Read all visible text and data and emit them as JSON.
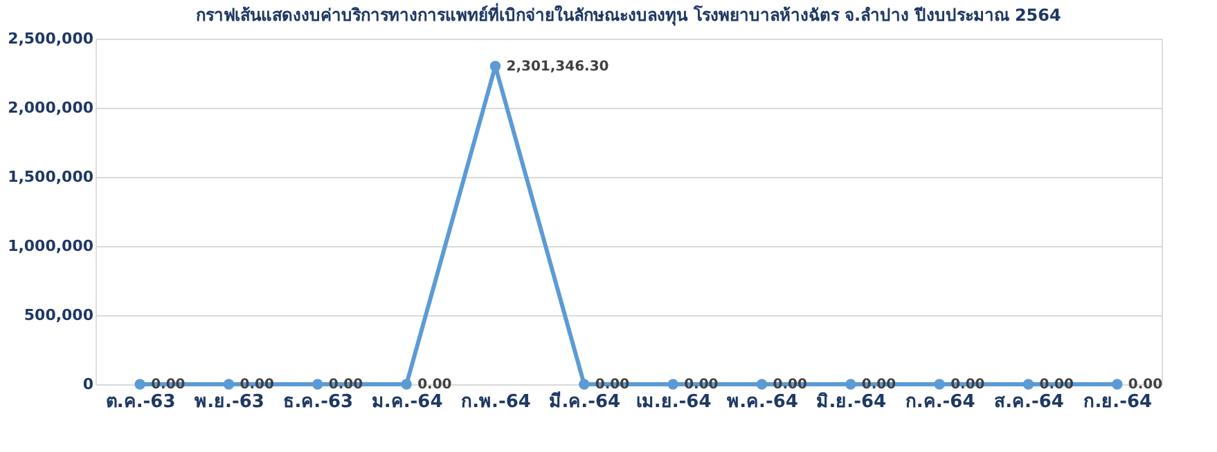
{
  "chart_data": {
    "type": "line",
    "title": "กราฟเส้นแสดงงบค่าบริการทางการแพทย์ที่เบิกจ่ายในลักษณะงบลงทุน โรงพยาบาลห้างฉัตร จ.ลำปาง ปีงบประมาณ 2564",
    "categories": [
      "ต.ค.-63",
      "พ.ย.-63",
      "ธ.ค.-63",
      "ม.ค.-64",
      "ก.พ.-64",
      "มี.ค.-64",
      "เม.ย.-64",
      "พ.ค.-64",
      "มิ.ย.-64",
      "ก.ค.-64",
      "ส.ค.-64",
      "ก.ย.-64"
    ],
    "series": [
      {
        "color": "#5b9bd5",
        "values": [
          0,
          0,
          0,
          0,
          2301346.3,
          0,
          0,
          0,
          0,
          0,
          0,
          0
        ],
        "value_labels": [
          "0.00",
          "0.00",
          "0.00",
          "0.00",
          "2,301,346.30",
          "0.00",
          "0.00",
          "0.00",
          "0.00",
          "0.00",
          "0.00",
          "0.00"
        ]
      }
    ],
    "ylim": [
      0,
      2500000
    ],
    "yticks": [
      {
        "value": 0,
        "label": "0"
      },
      {
        "value": 500000,
        "label": "500,000"
      },
      {
        "value": 1000000,
        "label": "1,000,000"
      },
      {
        "value": 1500000,
        "label": "1,500,000"
      },
      {
        "value": 2000000,
        "label": "2,000,000"
      },
      {
        "value": 2500000,
        "label": "2,500,000"
      }
    ],
    "grid": "y",
    "marker": "circle",
    "line_style": "solid"
  }
}
